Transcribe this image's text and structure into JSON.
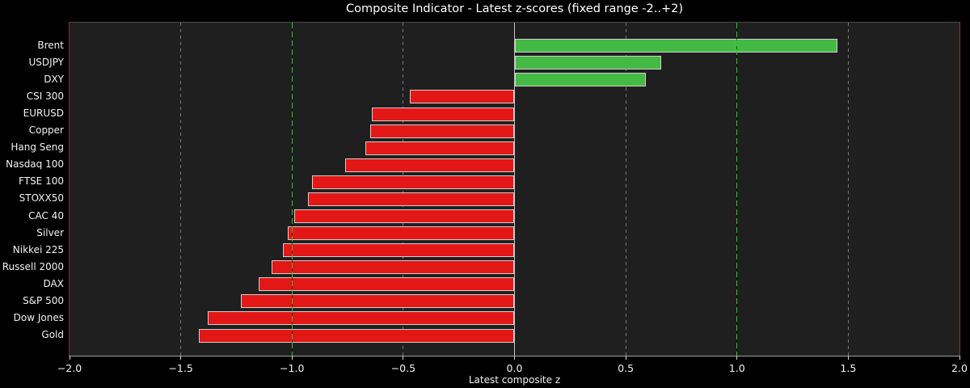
{
  "chart_data": {
    "type": "bar",
    "orientation": "horizontal",
    "title": "Composite Indicator - Latest z-scores (fixed range -2..+2)",
    "xlabel": "Latest composite z",
    "xlim": [
      -2.0,
      2.0
    ],
    "xticks": [
      {
        "value": -2.0,
        "label": "−2.0"
      },
      {
        "value": -1.5,
        "label": "−1.5"
      },
      {
        "value": -1.0,
        "label": "−1.0"
      },
      {
        "value": -0.5,
        "label": "−0.5"
      },
      {
        "value": 0.0,
        "label": "0.0"
      },
      {
        "value": 0.5,
        "label": "0.5"
      },
      {
        "value": 1.0,
        "label": "1.0"
      },
      {
        "value": 1.5,
        "label": "1.5"
      },
      {
        "value": 2.0,
        "label": "2.0"
      }
    ],
    "grid": true,
    "legend": false,
    "zero_line": 0.0,
    "threshold_lines": [
      -1.0,
      1.0
    ],
    "range_lines": [
      -2.0,
      2.0
    ],
    "categories": [
      "Brent",
      "USDJPY",
      "DXY",
      "CSI 300",
      "EURUSD",
      "Copper",
      "Hang Seng",
      "Nasdaq 100",
      "FTSE 100",
      "STOXX50",
      "CAC 40",
      "Silver",
      "Nikkei 225",
      "Russell 2000",
      "DAX",
      "S&P 500",
      "Dow Jones",
      "Gold"
    ],
    "values": [
      1.45,
      0.66,
      0.59,
      -0.47,
      -0.64,
      -0.65,
      -0.67,
      -0.76,
      -0.91,
      -0.93,
      -0.99,
      -1.02,
      -1.04,
      -1.09,
      -1.15,
      -1.23,
      -1.38,
      -1.42
    ],
    "colors": {
      "positive_bar": "#44ba44",
      "negative_bar": "#e41717",
      "bar_edge": "#cfcfcf",
      "threshold_line": "#24cc24",
      "grid_line": "#787878",
      "zero_line": "#c4c4c4",
      "range_line": "#8f3737",
      "plot_background": "#1f1f1f",
      "figure_background": "#000000",
      "text": "#f2f2f2"
    }
  }
}
